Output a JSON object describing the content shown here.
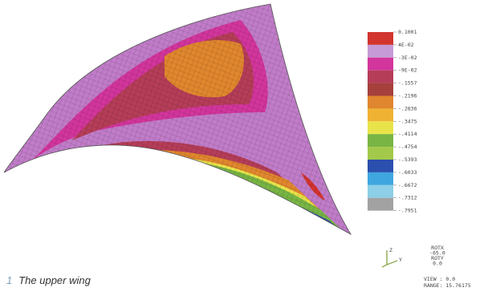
{
  "legend": {
    "labels": [
      "0.1001",
      "4E-02",
      "-3E-02",
      "-9E-02",
      "-.1557",
      "-.2196",
      "-.2836",
      "-.3475",
      "-.4114",
      "-.4754",
      "-.5393",
      "-.6033",
      "-.6672",
      "-.7312",
      "-.7951"
    ],
    "colors": [
      "#d2342e",
      "#c69ad6",
      "#d2359c",
      "#b53d58",
      "#a5403c",
      "#e0862e",
      "#f0b232",
      "#e9e34a",
      "#78b544",
      "#a3c94a",
      "#2b4fae",
      "#3fa6e0",
      "#8ccfe6",
      "#a2a2a2"
    ]
  },
  "triad": {
    "z": "Z",
    "y": "Y",
    "rotation": [
      "ROTX",
      "-65.0",
      "ROTY",
      " 0.0"
    ]
  },
  "view": {
    "view": "VIEW : 0.0",
    "range": "RANGE: 15.76175"
  },
  "caption": {
    "number": "1",
    "text": "The upper wing"
  }
}
